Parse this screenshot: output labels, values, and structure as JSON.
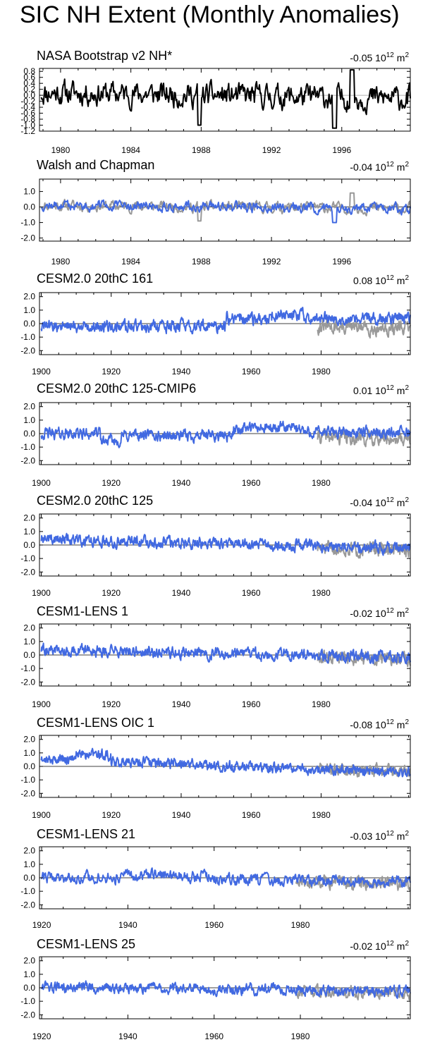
{
  "page_title": "SIC NH Extent (Monthly Anomalies)",
  "colors": {
    "model": "#4169e1",
    "obs": "#999999",
    "nasa": "#000000",
    "zero": "#888888"
  },
  "chart_data": [
    {
      "type": "line",
      "title": "NASA Bootstrap v2 NH*",
      "annotation": "-0.05 10",
      "annotation_exp": "12",
      "annotation_unit": " m",
      "annotation_unit_exp": "2",
      "xlim": [
        1978.8,
        1999.9
      ],
      "ylim": [
        -1.2,
        0.9
      ],
      "xticks": [
        1980,
        1984,
        1988,
        1992,
        1996
      ],
      "yticks": [
        0.8,
        0.6,
        0.4,
        0.2,
        0.0,
        -0.2,
        -0.4,
        -0.6,
        -0.8,
        -1.0,
        -1.2
      ],
      "ytick_labels": [
        "0.8",
        "0.6",
        "0.4",
        "0.2",
        "0.0",
        "-0.2",
        "-0.4",
        "-0.6",
        "-0.8",
        "-1.0",
        "-1.2"
      ],
      "series": [
        {
          "name": "NASA Bootstrap",
          "color": "#000000",
          "width": 2,
          "amp": 0.32,
          "base": 0.1,
          "trend": -0.22,
          "seed": 11,
          "start": 1978.9,
          "end": 1999.9,
          "dips": [
            [
              1987.9,
              -1.0
            ],
            [
              1995.6,
              -1.1
            ],
            [
              1996.6,
              0.85
            ]
          ]
        }
      ]
    },
    {
      "type": "line",
      "title": "Walsh and Chapman",
      "annotation": "-0.04 10",
      "annotation_exp": "12",
      "annotation_unit": " m",
      "annotation_unit_exp": "2",
      "xlim": [
        1978.8,
        1999.9
      ],
      "ylim": [
        -2.2,
        1.8
      ],
      "xticks": [
        1980,
        1984,
        1988,
        1992,
        1996
      ],
      "yticks": [
        1.0,
        0.0,
        -1.0,
        -2.0
      ],
      "ytick_labels": [
        "1.0",
        "0.0",
        "-1.0",
        "-2.0"
      ],
      "series": [
        {
          "name": "NASA (obs)",
          "color": "#999999",
          "width": 2,
          "amp": 0.28,
          "base": 0.1,
          "trend": -0.2,
          "seed": 11,
          "start": 1978.9,
          "end": 1999.9,
          "dips": [
            [
              1987.9,
              -0.9
            ],
            [
              1996.6,
              0.9
            ]
          ]
        },
        {
          "name": "Walsh and Chapman",
          "color": "#4169e1",
          "width": 2,
          "amp": 0.26,
          "base": 0.1,
          "trend": -0.2,
          "seed": 12,
          "start": 1978.9,
          "end": 1999.9,
          "dips": [
            [
              1995.6,
              -1.0
            ]
          ]
        }
      ]
    },
    {
      "type": "line",
      "title": "CESM2.0 20thC 161",
      "annotation": "0.08 10",
      "annotation_exp": "12",
      "annotation_unit": " m",
      "annotation_unit_exp": "2",
      "xlim": [
        1899.5,
        2005.5
      ],
      "ylim": [
        -2.3,
        2.3
      ],
      "xticks": [
        1900,
        1920,
        1940,
        1960,
        1980
      ],
      "yticks": [
        2.0,
        1.0,
        0.0,
        -1.0,
        -2.0
      ],
      "ytick_labels": [
        "2.0",
        "1.0",
        "0.0",
        "-1.0",
        "-2.0"
      ],
      "series": [
        {
          "name": "obs",
          "color": "#999999",
          "width": 2,
          "amp": 0.4,
          "base": 0.2,
          "trend": -0.6,
          "seed": 31,
          "start": 1979,
          "end": 2005.5
        },
        {
          "name": "CESM2.0 20thC 161",
          "color": "#4169e1",
          "width": 2,
          "amp": 0.35,
          "base": -0.2,
          "trend": 0.0,
          "seed": 32,
          "start": 1900,
          "end": 2005.5,
          "steps": [
            [
              1953,
              0.55
            ],
            [
              1966,
              0.3
            ],
            [
              1975,
              -0.25
            ]
          ]
        }
      ]
    },
    {
      "type": "line",
      "title": "CESM2.0 20thC 125-CMIP6",
      "annotation": "0.01 10",
      "annotation_exp": "12",
      "annotation_unit": " m",
      "annotation_unit_exp": "2",
      "xlim": [
        1899.5,
        2005.5
      ],
      "ylim": [
        -2.3,
        2.3
      ],
      "xticks": [
        1900,
        1920,
        1940,
        1960,
        1980
      ],
      "yticks": [
        2.0,
        1.0,
        0.0,
        -1.0,
        -2.0
      ],
      "ytick_labels": [
        "2.0",
        "1.0",
        "0.0",
        "-1.0",
        "-2.0"
      ],
      "series": [
        {
          "name": "obs",
          "color": "#999999",
          "width": 2,
          "amp": 0.4,
          "base": 0.2,
          "trend": -0.6,
          "seed": 41,
          "start": 1979,
          "end": 2005.5
        },
        {
          "name": "CESM2.0 20thC 125-CMIP6",
          "color": "#4169e1",
          "width": 2,
          "amp": 0.33,
          "base": 0.0,
          "trend": 0.0,
          "seed": 42,
          "start": 1900,
          "end": 2005.5,
          "steps": [
            [
              1917,
              -0.55
            ],
            [
              1923,
              0.4
            ],
            [
              1955,
              0.55
            ],
            [
              1975,
              -0.3
            ]
          ]
        }
      ]
    },
    {
      "type": "line",
      "title": "CESM2.0 20thC 125",
      "annotation": "-0.04 10",
      "annotation_exp": "12",
      "annotation_unit": " m",
      "annotation_unit_exp": "2",
      "xlim": [
        1899.5,
        2005.5
      ],
      "ylim": [
        -2.3,
        2.3
      ],
      "xticks": [
        1900,
        1920,
        1940,
        1960,
        1980
      ],
      "yticks": [
        2.0,
        1.0,
        0.0,
        -1.0,
        -2.0
      ],
      "ytick_labels": [
        "2.0",
        "1.0",
        "0.0",
        "-1.0",
        "-2.0"
      ],
      "series": [
        {
          "name": "obs",
          "color": "#999999",
          "width": 2,
          "amp": 0.4,
          "base": 0.2,
          "trend": -0.6,
          "seed": 51,
          "start": 1979,
          "end": 2005.5
        },
        {
          "name": "CESM2.0 20thC 125",
          "color": "#4169e1",
          "width": 2,
          "amp": 0.33,
          "base": 0.45,
          "trend": -0.7,
          "seed": 52,
          "start": 1900,
          "end": 2005.5
        }
      ]
    },
    {
      "type": "line",
      "title": "CESM1-LENS 1",
      "annotation": "-0.02 10",
      "annotation_exp": "12",
      "annotation_unit": " m",
      "annotation_unit_exp": "2",
      "xlim": [
        1899.5,
        2005.5
      ],
      "ylim": [
        -2.3,
        2.3
      ],
      "xticks": [
        1900,
        1920,
        1940,
        1960,
        1980
      ],
      "yticks": [
        2.0,
        1.0,
        0.0,
        -1.0,
        -2.0
      ],
      "ytick_labels": [
        "2.0",
        "1.0",
        "0.0",
        "-1.0",
        "-2.0"
      ],
      "series": [
        {
          "name": "obs",
          "color": "#999999",
          "width": 2,
          "amp": 0.4,
          "base": 0.2,
          "trend": -0.6,
          "seed": 61,
          "start": 1979,
          "end": 2005.5
        },
        {
          "name": "CESM1-LENS 1",
          "color": "#4169e1",
          "width": 2,
          "amp": 0.33,
          "base": 0.4,
          "trend": -0.6,
          "seed": 62,
          "start": 1900,
          "end": 2005.5
        }
      ]
    },
    {
      "type": "line",
      "title": "CESM1-LENS OIC 1",
      "annotation": "-0.08 10",
      "annotation_exp": "12",
      "annotation_unit": " m",
      "annotation_unit_exp": "2",
      "xlim": [
        1899.5,
        2005.5
      ],
      "ylim": [
        -2.3,
        2.3
      ],
      "xticks": [
        1900,
        1920,
        1940,
        1960,
        1980
      ],
      "yticks": [
        2.0,
        1.0,
        0.0,
        -1.0,
        -2.0
      ],
      "ytick_labels": [
        "2.0",
        "1.0",
        "0.0",
        "-1.0",
        "-2.0"
      ],
      "series": [
        {
          "name": "obs",
          "color": "#999999",
          "width": 2,
          "amp": 0.35,
          "base": 0.5,
          "trend": -0.9,
          "seed": 71,
          "start": 1979,
          "end": 2005.5
        },
        {
          "name": "CESM1-LENS OIC 1",
          "color": "#4169e1",
          "width": 2,
          "amp": 0.3,
          "base": 0.6,
          "trend": -1.0,
          "seed": 72,
          "start": 1900,
          "end": 2005.5,
          "steps": [
            [
              1910,
              0.4
            ],
            [
              1920,
              -0.45
            ]
          ]
        }
      ]
    },
    {
      "type": "line",
      "title": "CESM1-LENS 21",
      "annotation": "-0.03 10",
      "annotation_exp": "12",
      "annotation_unit": " m",
      "annotation_unit_exp": "2",
      "xlim": [
        1919.5,
        2005.5
      ],
      "ylim": [
        -2.3,
        2.3
      ],
      "xticks": [
        1920,
        1940,
        1960,
        1980
      ],
      "yticks": [
        2.0,
        1.0,
        0.0,
        -1.0,
        -2.0
      ],
      "ytick_labels": [
        "2.0",
        "1.0",
        "0.0",
        "-1.0",
        "-2.0"
      ],
      "series": [
        {
          "name": "obs",
          "color": "#999999",
          "width": 2,
          "amp": 0.4,
          "base": 0.3,
          "trend": -0.8,
          "seed": 81,
          "start": 1979,
          "end": 2005.5
        },
        {
          "name": "CESM1-LENS 21",
          "color": "#4169e1",
          "width": 2,
          "amp": 0.33,
          "base": 0.05,
          "trend": -0.35,
          "seed": 82,
          "start": 1920,
          "end": 2005.5,
          "steps": [
            [
              1939,
              0.25
            ],
            [
              1960,
              -0.25
            ]
          ]
        }
      ]
    },
    {
      "type": "line",
      "title": "CESM1-LENS 25",
      "annotation": "-0.02 10",
      "annotation_exp": "12",
      "annotation_unit": " m",
      "annotation_unit_exp": "2",
      "xlim": [
        1919.5,
        2005.5
      ],
      "ylim": [
        -2.3,
        2.3
      ],
      "xticks": [
        1920,
        1940,
        1960,
        1980
      ],
      "yticks": [
        2.0,
        1.0,
        0.0,
        -1.0,
        -2.0
      ],
      "ytick_labels": [
        "2.0",
        "1.0",
        "0.0",
        "-1.0",
        "-2.0"
      ],
      "series": [
        {
          "name": "obs",
          "color": "#999999",
          "width": 2,
          "amp": 0.35,
          "base": 0.3,
          "trend": -0.7,
          "seed": 91,
          "start": 1979,
          "end": 2005.5
        },
        {
          "name": "CESM1-LENS 25",
          "color": "#4169e1",
          "width": 2,
          "amp": 0.33,
          "base": 0.05,
          "trend": -0.3,
          "seed": 92,
          "start": 1920,
          "end": 2005.5
        }
      ]
    }
  ]
}
